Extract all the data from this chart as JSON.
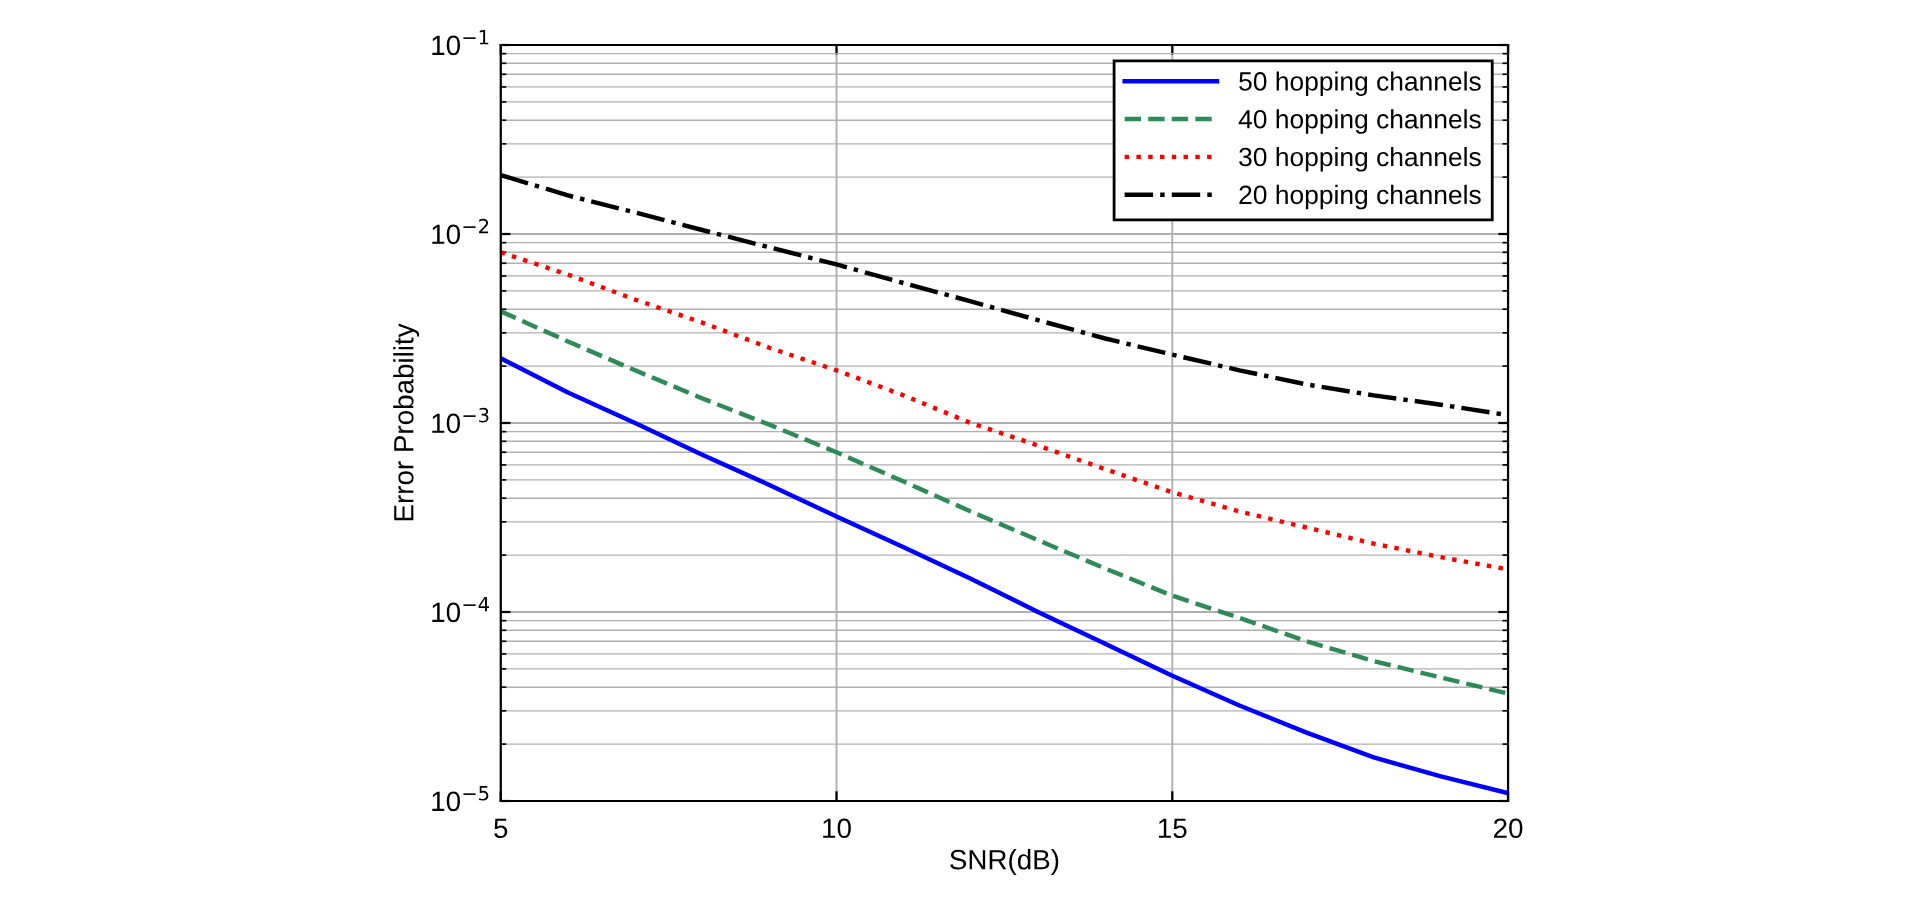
{
  "chart_data": {
    "type": "line",
    "xlabel": "SNR(dB)",
    "ylabel": "Error Probability",
    "log": "y",
    "grid": true,
    "legend": "top right",
    "x": [
      5,
      6,
      7,
      8,
      9,
      10,
      11,
      12,
      13,
      14,
      15,
      16,
      17,
      18,
      19,
      20
    ],
    "xlim": [
      5,
      20
    ],
    "xticks": [
      5,
      10,
      15,
      20
    ],
    "ylim": [
      1e-05,
      0.1
    ],
    "yticks": [
      {
        "value": 1e-05,
        "label": "10$^{−5}$"
      },
      {
        "value": 0.0001,
        "label": "10$^{−4}$"
      },
      {
        "value": 0.001,
        "label": "10$^{−3}$"
      },
      {
        "value": 0.01,
        "label": "10$^{−2}$"
      },
      {
        "value": 0.1,
        "label": "10$^{−1}$"
      }
    ],
    "series": [
      {
        "name": "50 hopping channels",
        "color": "#0000ff",
        "line_style": "solid",
        "values": [
          0.0022,
          0.00145,
          0.001,
          0.00068,
          0.00047,
          0.00032,
          0.00022,
          0.00015,
          0.0001,
          6.8e-05,
          4.6e-05,
          3.2e-05,
          2.3e-05,
          1.7e-05,
          1.35e-05,
          1.1e-05
        ]
      },
      {
        "name": "40 hopping channels",
        "color": "#2e8b57",
        "line_style": "dashed",
        "values": [
          0.0039,
          0.0027,
          0.0019,
          0.00135,
          0.00098,
          0.0007,
          0.00049,
          0.00034,
          0.00024,
          0.00017,
          0.000122,
          9.3e-05,
          7e-05,
          5.5e-05,
          4.5e-05,
          3.7e-05
        ]
      },
      {
        "name": "30 hopping channels",
        "color": "#ff0000",
        "line_style": "dotted",
        "values": [
          0.008,
          0.0061,
          0.0045,
          0.0034,
          0.0025,
          0.0019,
          0.0014,
          0.001,
          0.00076,
          0.00057,
          0.00043,
          0.00034,
          0.00028,
          0.00023,
          0.000195,
          0.000168
        ]
      },
      {
        "name": "20 hopping channels",
        "color": "#000000",
        "line_style": "dashdot",
        "values": [
          0.0205,
          0.016,
          0.013,
          0.0105,
          0.0085,
          0.0069,
          0.0055,
          0.0044,
          0.0035,
          0.0028,
          0.0023,
          0.0019,
          0.0016,
          0.0014,
          0.00125,
          0.0011
        ]
      }
    ]
  }
}
